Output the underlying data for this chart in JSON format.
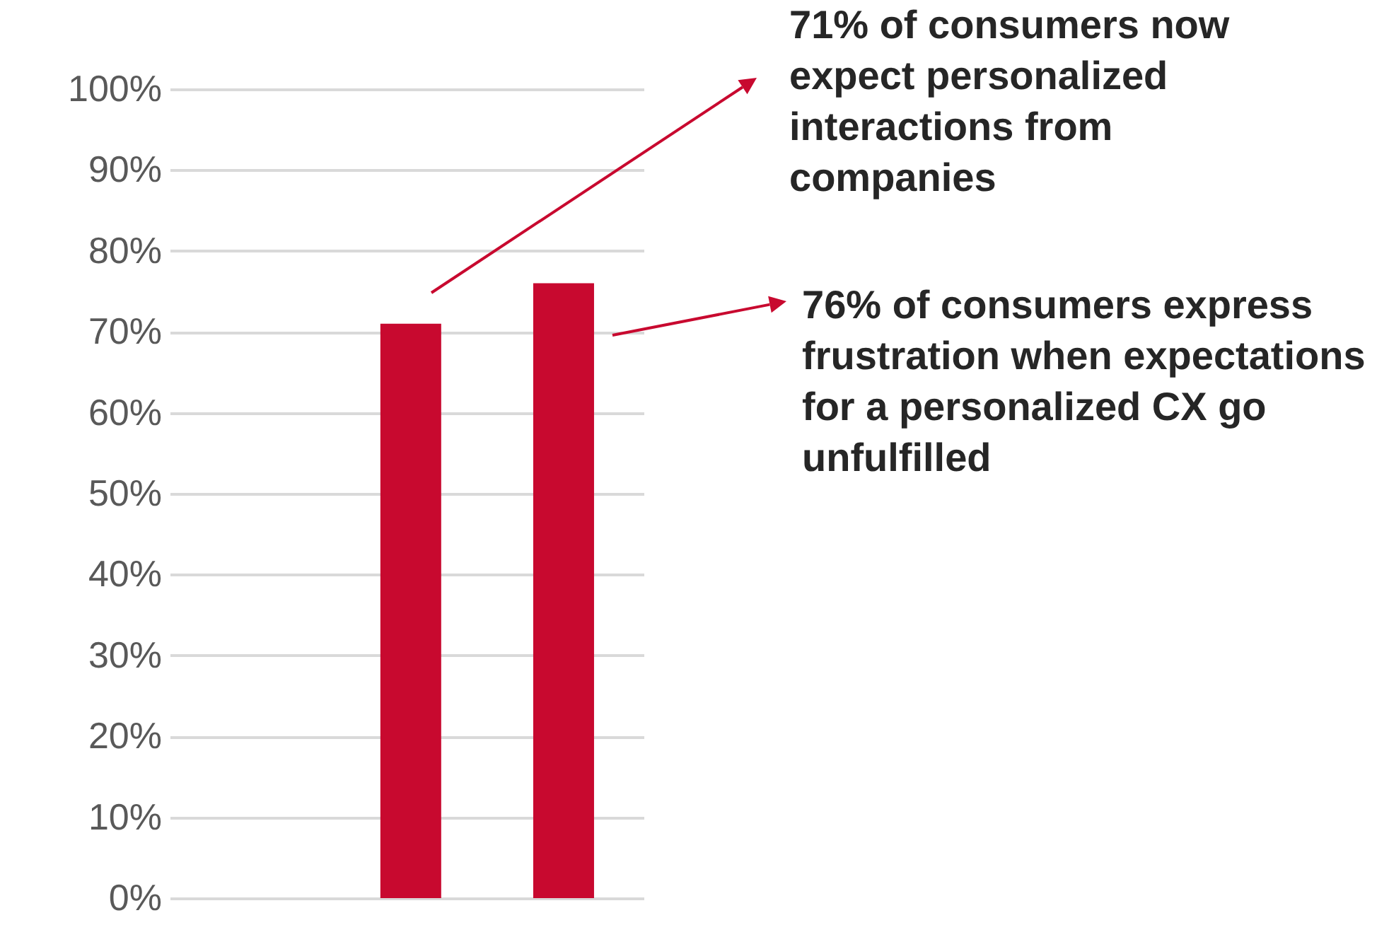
{
  "chart_data": {
    "type": "bar",
    "categories": [
      null,
      null
    ],
    "values": [
      71,
      76
    ],
    "color": "#c8092f",
    "ylim": [
      0,
      100
    ],
    "yticks": [
      {
        "value": 0,
        "label": "0%"
      },
      {
        "value": 10,
        "label": "10%"
      },
      {
        "value": 20,
        "label": "20%"
      },
      {
        "value": 30,
        "label": "30%"
      },
      {
        "value": 40,
        "label": "40%"
      },
      {
        "value": 50,
        "label": "50%"
      },
      {
        "value": 60,
        "label": "60%"
      },
      {
        "value": 70,
        "label": "70%"
      },
      {
        "value": 80,
        "label": "80%"
      },
      {
        "value": 90,
        "label": "90%"
      },
      {
        "value": 100,
        "label": "100%"
      }
    ],
    "grid": true,
    "tick_labels": "y",
    "annotations": [
      "71% of consumers now expect personalized interactions from companies",
      "76% of consumers express frustration when expectations for a personalized CX go unfulfilled"
    ]
  }
}
